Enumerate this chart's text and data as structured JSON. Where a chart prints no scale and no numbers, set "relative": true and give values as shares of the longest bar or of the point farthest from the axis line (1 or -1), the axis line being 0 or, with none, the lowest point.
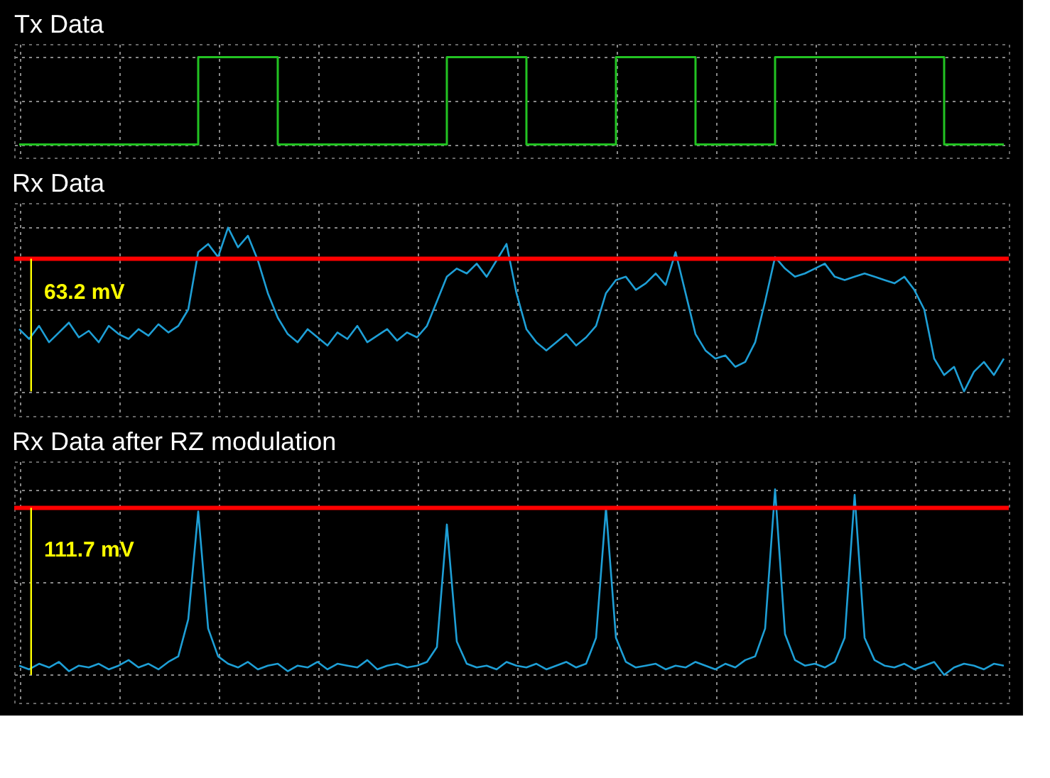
{
  "chart_data": [
    {
      "type": "step",
      "title": "Tx Data",
      "relative": true,
      "grid": true,
      "tick_labels": false,
      "legend": false,
      "categories": [
        null,
        null,
        null,
        null,
        null,
        null,
        null,
        null,
        null,
        null,
        null,
        null,
        null,
        null,
        null,
        null,
        null,
        null,
        null,
        null,
        null,
        null,
        null,
        null,
        null,
        null,
        null,
        null,
        null,
        null,
        null,
        null,
        null,
        null,
        null,
        null,
        null,
        null,
        null,
        null,
        null,
        null,
        null,
        null,
        null,
        null,
        null,
        null,
        null,
        null,
        null,
        null,
        null,
        null,
        null,
        null,
        null,
        null,
        null,
        null,
        null,
        null,
        null,
        null,
        null,
        null,
        null,
        null,
        null,
        null,
        null,
        null,
        null,
        null,
        null,
        null,
        null,
        null,
        null,
        null,
        null,
        null,
        null,
        null,
        null,
        null,
        null,
        null,
        null,
        null,
        null,
        null,
        null,
        null,
        null,
        null,
        null,
        null,
        null,
        null
      ],
      "series": [
        {
          "color": "#22c322",
          "values": [
            0,
            0,
            0,
            0,
            0,
            0,
            0,
            0,
            0,
            0,
            0,
            0,
            0,
            0,
            0,
            0,
            0,
            0,
            1,
            1,
            1,
            1,
            1,
            1,
            1,
            1,
            0,
            0,
            0,
            0,
            0,
            0,
            0,
            0,
            0,
            0,
            0,
            0,
            0,
            0,
            0,
            0,
            0,
            1,
            1,
            1,
            1,
            1,
            1,
            1,
            1,
            0,
            0,
            0,
            0,
            0,
            0,
            0,
            0,
            0,
            1,
            1,
            1,
            1,
            1,
            1,
            1,
            1,
            0,
            0,
            0,
            0,
            0,
            0,
            0,
            0,
            1,
            1,
            1,
            1,
            1,
            1,
            1,
            1,
            1,
            1,
            1,
            1,
            1,
            1,
            1,
            1,
            1,
            0,
            0,
            0,
            0,
            0,
            0,
            0
          ]
        }
      ]
    },
    {
      "type": "line",
      "title": "Rx Data",
      "relative": true,
      "grid": true,
      "tick_labels": false,
      "legend": false,
      "categories": [
        null,
        null,
        null,
        null,
        null,
        null,
        null,
        null,
        null,
        null,
        null,
        null,
        null,
        null,
        null,
        null,
        null,
        null,
        null,
        null,
        null,
        null,
        null,
        null,
        null,
        null,
        null,
        null,
        null,
        null,
        null,
        null,
        null,
        null,
        null,
        null,
        null,
        null,
        null,
        null,
        null,
        null,
        null,
        null,
        null,
        null,
        null,
        null,
        null,
        null,
        null,
        null,
        null,
        null,
        null,
        null,
        null,
        null,
        null,
        null,
        null,
        null,
        null,
        null,
        null,
        null,
        null,
        null,
        null,
        null,
        null,
        null,
        null,
        null,
        null,
        null,
        null,
        null,
        null,
        null,
        null,
        null,
        null,
        null,
        null,
        null,
        null,
        null,
        null,
        null,
        null,
        null,
        null,
        null,
        null,
        null,
        null,
        null,
        null,
        null
      ],
      "series": [
        {
          "color": "#1e9fd6",
          "values": [
            0.38,
            0.32,
            0.4,
            0.3,
            0.36,
            0.42,
            0.33,
            0.37,
            0.3,
            0.4,
            0.35,
            0.32,
            0.38,
            0.34,
            0.41,
            0.36,
            0.4,
            0.5,
            0.85,
            0.9,
            0.82,
            1.0,
            0.88,
            0.95,
            0.8,
            0.6,
            0.45,
            0.35,
            0.3,
            0.38,
            0.33,
            0.28,
            0.36,
            0.32,
            0.4,
            0.3,
            0.34,
            0.38,
            0.31,
            0.36,
            0.33,
            0.4,
            0.55,
            0.7,
            0.75,
            0.72,
            0.78,
            0.7,
            0.8,
            0.9,
            0.6,
            0.38,
            0.3,
            0.25,
            0.3,
            0.35,
            0.28,
            0.33,
            0.4,
            0.6,
            0.68,
            0.7,
            0.62,
            0.66,
            0.72,
            0.65,
            0.85,
            0.6,
            0.35,
            0.25,
            0.2,
            0.22,
            0.15,
            0.18,
            0.3,
            0.55,
            0.82,
            0.75,
            0.7,
            0.72,
            0.75,
            0.78,
            0.7,
            0.68,
            0.7,
            0.72,
            0.7,
            0.68,
            0.66,
            0.7,
            0.62,
            0.5,
            0.2,
            0.1,
            0.15,
            0.0,
            0.12,
            0.18,
            0.1,
            0.2
          ]
        }
      ],
      "ref_lines": [
        {
          "axis": "y",
          "value": 0.81,
          "label": "63.2 mV",
          "color": "#ff0000"
        }
      ]
    },
    {
      "type": "line",
      "title": "Rx Data after RZ modulation",
      "relative": true,
      "grid": true,
      "tick_labels": false,
      "legend": false,
      "categories": [
        null,
        null,
        null,
        null,
        null,
        null,
        null,
        null,
        null,
        null,
        null,
        null,
        null,
        null,
        null,
        null,
        null,
        null,
        null,
        null,
        null,
        null,
        null,
        null,
        null,
        null,
        null,
        null,
        null,
        null,
        null,
        null,
        null,
        null,
        null,
        null,
        null,
        null,
        null,
        null,
        null,
        null,
        null,
        null,
        null,
        null,
        null,
        null,
        null,
        null,
        null,
        null,
        null,
        null,
        null,
        null,
        null,
        null,
        null,
        null,
        null,
        null,
        null,
        null,
        null,
        null,
        null,
        null,
        null,
        null,
        null,
        null,
        null,
        null,
        null,
        null,
        null,
        null,
        null,
        null,
        null,
        null,
        null,
        null,
        null,
        null,
        null,
        null,
        null,
        null,
        null,
        null,
        null,
        null,
        null,
        null,
        null,
        null,
        null,
        null
      ],
      "series": [
        {
          "color": "#1e9fd6",
          "values": [
            0.05,
            0.03,
            0.06,
            0.04,
            0.07,
            0.02,
            0.05,
            0.04,
            0.06,
            0.03,
            0.05,
            0.08,
            0.04,
            0.06,
            0.03,
            0.07,
            0.1,
            0.3,
            0.88,
            0.25,
            0.1,
            0.06,
            0.04,
            0.07,
            0.03,
            0.05,
            0.06,
            0.02,
            0.05,
            0.04,
            0.07,
            0.03,
            0.06,
            0.05,
            0.04,
            0.08,
            0.03,
            0.05,
            0.06,
            0.04,
            0.05,
            0.07,
            0.15,
            0.81,
            0.18,
            0.06,
            0.04,
            0.05,
            0.03,
            0.07,
            0.05,
            0.04,
            0.06,
            0.03,
            0.05,
            0.07,
            0.04,
            0.06,
            0.2,
            0.9,
            0.2,
            0.07,
            0.04,
            0.05,
            0.06,
            0.03,
            0.05,
            0.04,
            0.07,
            0.05,
            0.03,
            0.06,
            0.04,
            0.08,
            0.1,
            0.25,
            1.0,
            0.22,
            0.08,
            0.05,
            0.06,
            0.04,
            0.07,
            0.2,
            0.97,
            0.2,
            0.08,
            0.05,
            0.04,
            0.06,
            0.03,
            0.05,
            0.07,
            0.0,
            0.04,
            0.06,
            0.05,
            0.03,
            0.06,
            0.05
          ]
        }
      ],
      "ref_lines": [
        {
          "axis": "y",
          "value": 0.9,
          "label": "111.7 mV",
          "color": "#ff0000"
        }
      ]
    }
  ]
}
